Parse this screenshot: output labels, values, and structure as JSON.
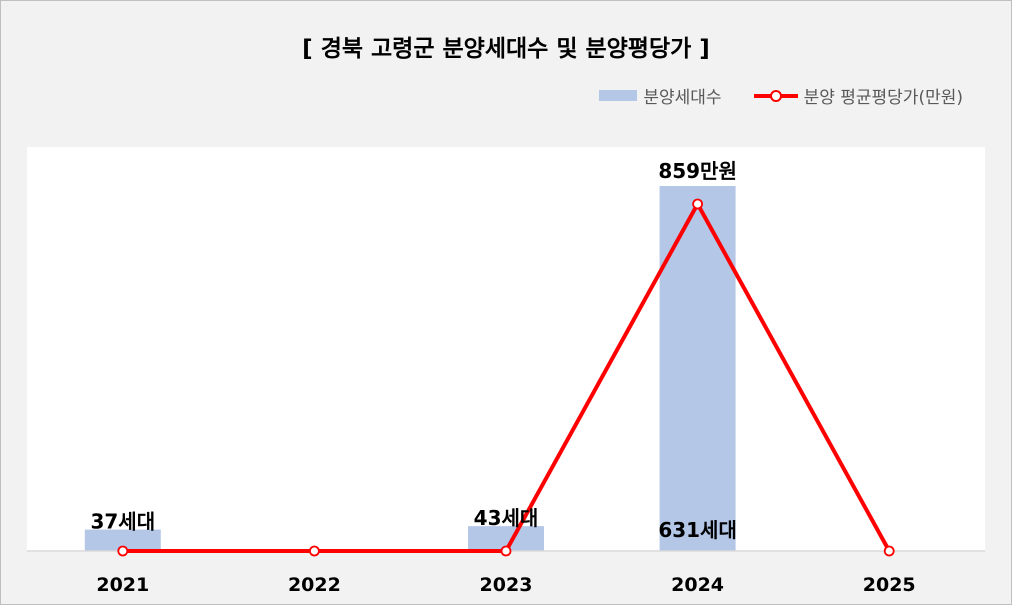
{
  "chart_data": {
    "type": "bar+line",
    "title": "[ 경북 고령군 분양세대수 및 분양평당가 ]",
    "categories": [
      "2021",
      "2022",
      "2023",
      "2024",
      "2025"
    ],
    "series": [
      {
        "name": "분양세대수",
        "type": "bar",
        "color": "#b4c7e7",
        "values": [
          37,
          0,
          43,
          631,
          0
        ],
        "labels": [
          "37세대",
          "",
          "43세대",
          "631세대",
          ""
        ]
      },
      {
        "name": "분양 평균평당가(만원)",
        "type": "line",
        "color": "#ff0000",
        "values": [
          0,
          0,
          0,
          859,
          0
        ],
        "labels": [
          "",
          "",
          "",
          "859만원",
          ""
        ]
      }
    ],
    "legend_position": "top-right",
    "grid": false
  }
}
